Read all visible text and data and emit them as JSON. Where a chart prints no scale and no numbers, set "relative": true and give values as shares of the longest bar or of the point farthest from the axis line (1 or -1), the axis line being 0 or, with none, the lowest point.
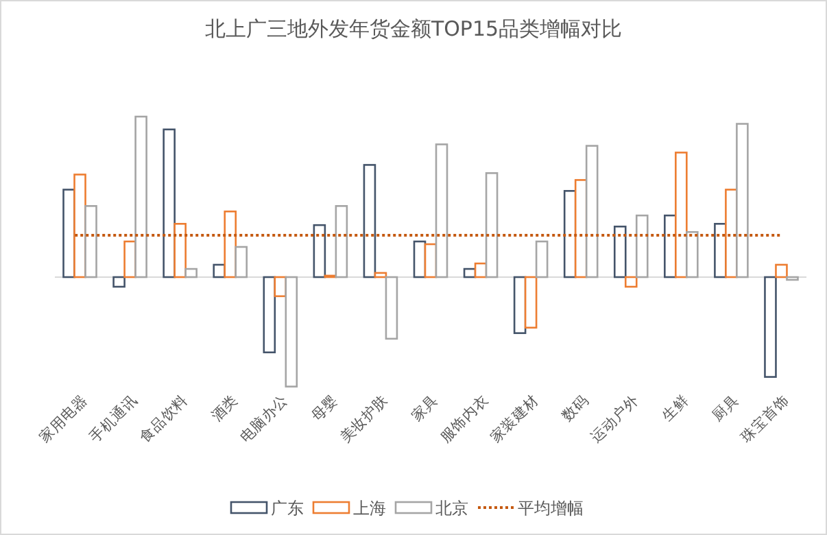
{
  "chart_data": {
    "type": "bar",
    "title": "北上广三地外发年货金额TOP15品类增幅对比",
    "relative": true,
    "legend": "bottom",
    "categories": [
      "家用电器",
      "手机通讯",
      "食品饮料",
      "酒类",
      "电脑办公",
      "母婴",
      "美妆护肤",
      "家具",
      "服饰内衣",
      "家装建材",
      "数码",
      "运动户外",
      "生鲜",
      "厨具",
      "珠宝首饰"
    ],
    "series": [
      {
        "name": "广东",
        "color": "#44546a",
        "values": [
          0.545,
          -0.06,
          0.92,
          0.077,
          -0.469,
          0.324,
          0.699,
          0.222,
          0.051,
          -0.349,
          0.537,
          0.315,
          0.384,
          0.332,
          -0.622
        ]
      },
      {
        "name": "上海",
        "color": "#ed7d31",
        "values": [
          0.639,
          0.222,
          0.332,
          0.409,
          -0.119,
          0.009,
          0.026,
          0.205,
          0.085,
          -0.315,
          0.605,
          -0.06,
          0.776,
          0.545,
          0.077
        ]
      },
      {
        "name": "北京",
        "color": "#a5a5a5",
        "values": [
          0.443,
          1,
          0.051,
          0.188,
          -0.682,
          0.443,
          -0.384,
          0.827,
          0.648,
          0.222,
          0.818,
          0.384,
          0.281,
          0.955,
          -0.017
        ]
      }
    ],
    "ref_lines": [
      {
        "axis": "y",
        "value": 0.261,
        "label": "平均增幅",
        "color": "#c55a11",
        "line_style": "dotted"
      }
    ]
  }
}
